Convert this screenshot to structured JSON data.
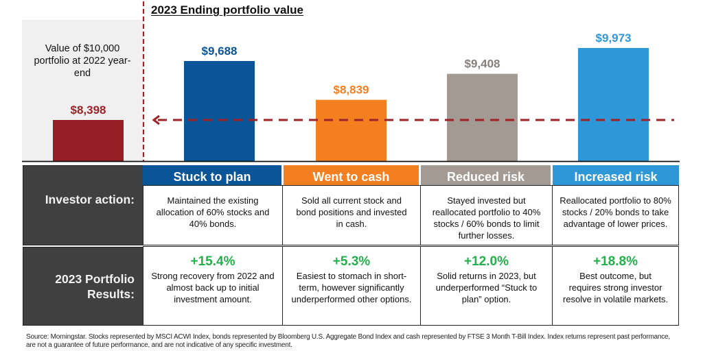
{
  "chart_data": {
    "type": "bar",
    "title": "2023 Ending portfolio value",
    "baseline_label": "Value of $10,000 portfolio at 2022 year-end",
    "categories": [
      "2022 year-end",
      "Stuck to plan",
      "Went to cash",
      "Reduced risk",
      "Increased risk"
    ],
    "values": [
      8398,
      9688,
      8839,
      9408,
      9973
    ],
    "value_labels": [
      "$8,398",
      "$9,688",
      "$8,839",
      "$9,408",
      "$9,973"
    ],
    "colors": [
      "#951e24",
      "#0a5598",
      "#f47f20",
      "#a39a93",
      "#2e97d8"
    ],
    "reference_line": {
      "value": 8398,
      "color": "#9b2226",
      "style": "dashed",
      "arrow": "left"
    },
    "ylim": [
      7500,
      10200
    ],
    "xlabel": "",
    "ylabel": "",
    "grid": false,
    "legend": "none"
  },
  "table": {
    "row_labels": [
      "Investor action:",
      "2023 Portfolio Results:"
    ],
    "columns": [
      {
        "header": "Stuck to plan",
        "color": "#0a5598",
        "action": "Maintained the existing allocation of 60% stocks and 40% bonds.",
        "result_pct": "+15.4%",
        "result_text": "Strong recovery from 2022 and almost back up to initial investment amount."
      },
      {
        "header": "Went to cash",
        "color": "#f47f20",
        "action": "Sold all current stock and bond positions and invested in cash.",
        "result_pct": "+5.3%",
        "result_text": "Easiest to stomach in short-term, however significantly underperformed other options."
      },
      {
        "header": "Reduced risk",
        "color": "#a39a93",
        "action": "Stayed invested but reallocated portfolio to 40% stocks / 60% bonds to limit further losses.",
        "result_pct": "+12.0%",
        "result_text": "Solid returns in 2023, but underperformed “Stuck to plan” option."
      },
      {
        "header": "Increased risk",
        "color": "#2e97d8",
        "action": "Reallocated portfolio to 80% stocks / 20% bonds to take advantage of lower prices.",
        "result_pct": "+18.8%",
        "result_text": "Best outcome, but requires strong investor resolve in volatile markets."
      }
    ]
  },
  "footnote": "Source: Morningstar. Stocks represented by MSCI ACWI Index, bonds represented by Bloomberg U.S. Aggregate Bond Index and cash represented by FTSE 3 Month T-Bill Index. Index returns represent past performance, are not a guarantee of future performance, and are not indicative of any specific investment."
}
